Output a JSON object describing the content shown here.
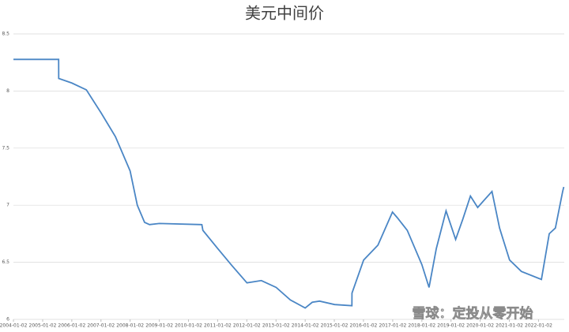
{
  "chart_data": {
    "type": "line",
    "title": "美元中间价",
    "watermark": "雪球：定投从零开始",
    "x": [
      "2004-01-02",
      "2005-07-21",
      "2005-07-22",
      "2006-01-02",
      "2006-07-03",
      "2007-01-02",
      "2007-07-02",
      "2008-01-02",
      "2008-04-01",
      "2008-07-01",
      "2008-09-01",
      "2009-01-02",
      "2010-06-18",
      "2010-07-01",
      "2011-01-03",
      "2011-07-01",
      "2012-01-04",
      "2012-07-02",
      "2013-01-04",
      "2013-07-01",
      "2014-01-02",
      "2014-04-01",
      "2014-07-01",
      "2015-01-05",
      "2015-08-10",
      "2015-08-11",
      "2016-01-04",
      "2016-07-01",
      "2016-12-30",
      "2017-03-01",
      "2017-07-03",
      "2018-01-02",
      "2018-04-02",
      "2018-07-02",
      "2018-11-01",
      "2019-03-01",
      "2019-05-31",
      "2019-09-02",
      "2019-12-02",
      "2020-02-03",
      "2020-05-29",
      "2020-09-01",
      "2021-01-04",
      "2021-06-01",
      "2022-02-07",
      "2022-05-16",
      "2022-08-01",
      "2022-10-31",
      "2022-11-14"
    ],
    "series": [
      {
        "name": "美元中间价",
        "color": "#4a86c5",
        "values": [
          8.277,
          8.277,
          8.11,
          8.07,
          8.01,
          7.81,
          7.6,
          7.3,
          7.0,
          6.85,
          6.83,
          6.84,
          6.83,
          6.78,
          6.62,
          6.47,
          6.32,
          6.34,
          6.28,
          6.17,
          6.1,
          6.15,
          6.16,
          6.13,
          6.12,
          6.23,
          6.52,
          6.65,
          6.94,
          6.89,
          6.78,
          6.48,
          6.28,
          6.62,
          6.95,
          6.7,
          6.88,
          7.08,
          6.98,
          7.03,
          7.12,
          6.8,
          6.52,
          6.42,
          6.35,
          6.75,
          6.8,
          7.12,
          7.16
        ]
      }
    ],
    "xlim": [
      "2004-01-02",
      "2022-11-20"
    ],
    "xticks": [
      "2004-01-02",
      "2005-01-02",
      "2006-01-02",
      "2007-01-02",
      "2008-01-02",
      "2009-01-02",
      "2010-01-02",
      "2011-01-02",
      "2012-01-02",
      "2013-01-02",
      "2014-01-02",
      "2015-01-02",
      "2016-01-02",
      "2017-01-02",
      "2018-01-02",
      "2019-01-02",
      "2020-01-02",
      "2021-01-02",
      "2022-01-02"
    ],
    "ylim": [
      6,
      8.5
    ],
    "yticks": [
      6,
      6.5,
      7,
      7.5,
      8,
      8.5
    ],
    "grid": true
  }
}
